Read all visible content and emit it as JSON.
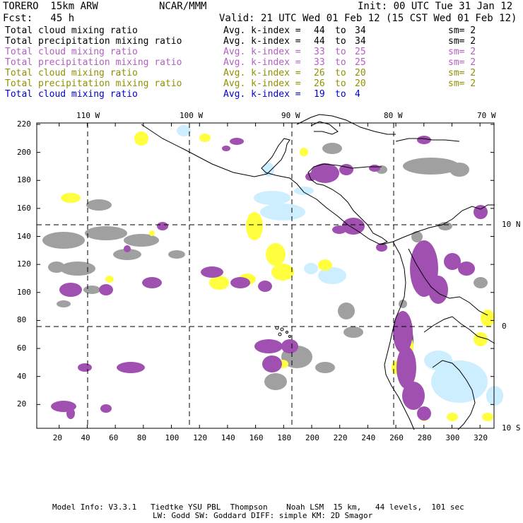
{
  "header": {
    "model": "TORERO  15km ARW",
    "org": "NCAR/MMM",
    "init": "Init: 00 UTC Tue 31 Jan 12",
    "fcst": "Fcst:   45 h",
    "valid": "Valid: 21 UTC Wed 01 Feb 12 (15 CST Wed 01 Feb 12)"
  },
  "legend": [
    {
      "field": "Total cloud mixing ratio",
      "k": "Avg. k-index =",
      "a": "44",
      "to": "to",
      "b": "34",
      "sm": "sm= 2",
      "color": "#000000"
    },
    {
      "field": "Total precipitation mixing ratio",
      "k": "Avg. k-index =",
      "a": "44",
      "to": "to",
      "b": "34",
      "sm": "sm= 2",
      "color": "#000000"
    },
    {
      "field": "Total cloud mixing ratio",
      "k": "Avg. k-index =",
      "a": "33",
      "to": "to",
      "b": "25",
      "sm": "sm= 2",
      "color": "#b060c0"
    },
    {
      "field": "Total precipitation mixing ratio",
      "k": "Avg. k-index =",
      "a": "33",
      "to": "to",
      "b": "25",
      "sm": "sm= 2",
      "color": "#b060c0"
    },
    {
      "field": "Total cloud mixing ratio",
      "k": "Avg. k-index =",
      "a": "26",
      "to": "to",
      "b": "20",
      "sm": "sm= 2",
      "color": "#909000"
    },
    {
      "field": "Total precipitation mixing ratio",
      "k": "Avg. k-index =",
      "a": "26",
      "to": "to",
      "b": "20",
      "sm": "sm= 2",
      "color": "#909000"
    },
    {
      "field": "Total cloud mixing ratio",
      "k": "Avg. k-index =",
      "a": "19",
      "to": "to",
      "b": "4",
      "sm": "",
      "color": "#0000d0"
    }
  ],
  "axes": {
    "x_ticks": [
      "20",
      "40",
      "60",
      "80",
      "100",
      "120",
      "140",
      "160",
      "180",
      "200",
      "220",
      "240",
      "260",
      "280",
      "300",
      "320"
    ],
    "y_ticks": [
      "20",
      "40",
      "60",
      "80",
      "100",
      "120",
      "140",
      "160",
      "180",
      "200",
      "220"
    ],
    "lon_labels": [
      "110 W",
      "100 W",
      "90 W",
      "80 W",
      "70 W"
    ],
    "lat_labels": [
      "10 N",
      "0",
      "10 S"
    ]
  },
  "colors": {
    "gray": "#a0a0a0",
    "darkgray": "#505050",
    "purple": "#a050b0",
    "yellow": "#ffff40",
    "lightblue": "#cceeff",
    "coast": "#000000"
  },
  "footer": {
    "line1": "Model Info: V3.3.1   Tiedtke YSU PBL  Thompson    Noah LSM  15 km,   44 levels,  101 sec",
    "line2": "LW: Godd SW: Goddard DIFF: simple KM: 2D Smagor"
  }
}
